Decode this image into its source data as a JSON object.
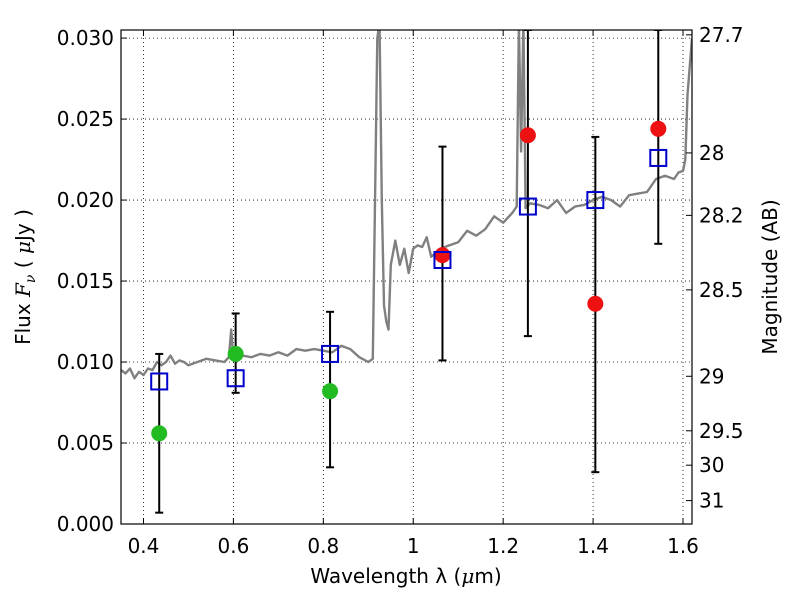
{
  "chart_data": {
    "type": "scatter",
    "xlabel": {
      "prefix": "Wavelength  λ (",
      "unit_mu": "μ",
      "unit_rest": "m)"
    },
    "ylabel": {
      "prefix": "Flux  ",
      "var_main": "F",
      "var_sub": "ν",
      "mid": "  ( ",
      "unit_mu": "μ",
      "unit_rest": "Jy )"
    },
    "y2label": "Magnitude (AB)",
    "xlim": [
      0.35,
      1.62
    ],
    "ylim": [
      0.0,
      0.0305
    ],
    "x_ticks": [
      {
        "value": 0.4,
        "label": "0.4"
      },
      {
        "value": 0.6,
        "label": "0.6"
      },
      {
        "value": 0.8,
        "label": "0.8"
      },
      {
        "value": 1.0,
        "label": "1"
      },
      {
        "value": 1.2,
        "label": "1.2"
      },
      {
        "value": 1.4,
        "label": "1.4"
      },
      {
        "value": 1.6,
        "label": "1.6"
      }
    ],
    "y_ticks": [
      {
        "value": 0.0,
        "label": "0.000"
      },
      {
        "value": 0.005,
        "label": "0.005"
      },
      {
        "value": 0.01,
        "label": "0.010"
      },
      {
        "value": 0.015,
        "label": "0.015"
      },
      {
        "value": 0.02,
        "label": "0.020"
      },
      {
        "value": 0.025,
        "label": "0.025"
      },
      {
        "value": 0.03,
        "label": "0.030"
      }
    ],
    "y2_ticks": [
      {
        "value": 27.7,
        "label": "27.7"
      },
      {
        "value": 28.0,
        "label": "28"
      },
      {
        "value": 28.2,
        "label": "28.2"
      },
      {
        "value": 28.5,
        "label": "28.5"
      },
      {
        "value": 29.0,
        "label": "29"
      },
      {
        "value": 29.5,
        "label": "29.5"
      },
      {
        "value": 30.0,
        "label": "30"
      },
      {
        "value": 31.0,
        "label": "31"
      }
    ],
    "grid": true,
    "colors": {
      "spectrum": "#808080",
      "optical_points": "#22bb22",
      "nir_points": "#ee1111",
      "model_squares": "#0000cc",
      "error_bars": "#000000"
    },
    "series": [
      {
        "kind": "line",
        "color": "#808080",
        "x": [
          0.35,
          0.36,
          0.37,
          0.38,
          0.39,
          0.4,
          0.41,
          0.42,
          0.43,
          0.44,
          0.45,
          0.46,
          0.47,
          0.48,
          0.49,
          0.5,
          0.52,
          0.54,
          0.56,
          0.58,
          0.59,
          0.595,
          0.6,
          0.62,
          0.64,
          0.66,
          0.68,
          0.7,
          0.72,
          0.74,
          0.76,
          0.78,
          0.8,
          0.82,
          0.84,
          0.86,
          0.88,
          0.9,
          0.91,
          0.92,
          0.925,
          0.93,
          0.935,
          0.94,
          0.945,
          0.95,
          0.96,
          0.97,
          0.98,
          0.99,
          1.0,
          1.01,
          1.02,
          1.03,
          1.04,
          1.06,
          1.08,
          1.1,
          1.12,
          1.14,
          1.16,
          1.18,
          1.2,
          1.22,
          1.23,
          1.235,
          1.24,
          1.245,
          1.25,
          1.26,
          1.28,
          1.3,
          1.32,
          1.34,
          1.36,
          1.38,
          1.4,
          1.42,
          1.44,
          1.46,
          1.48,
          1.5,
          1.52,
          1.54,
          1.56,
          1.58,
          1.59,
          1.6,
          1.605,
          1.61,
          1.62
        ],
        "y": [
          0.0095,
          0.0093,
          0.0096,
          0.009,
          0.0094,
          0.0092,
          0.0096,
          0.0095,
          0.01,
          0.0098,
          0.01,
          0.0104,
          0.0099,
          0.0101,
          0.01,
          0.0098,
          0.01,
          0.0102,
          0.0101,
          0.01,
          0.0103,
          0.012,
          0.0102,
          0.0104,
          0.0103,
          0.0105,
          0.0104,
          0.0106,
          0.0104,
          0.0108,
          0.0107,
          0.0108,
          0.0107,
          0.0106,
          0.011,
          0.0108,
          0.0103,
          0.01,
          0.0102,
          0.03,
          0.031,
          0.02,
          0.0135,
          0.0125,
          0.012,
          0.016,
          0.0175,
          0.016,
          0.017,
          0.0155,
          0.017,
          0.0172,
          0.0171,
          0.0177,
          0.0165,
          0.017,
          0.0172,
          0.0174,
          0.0181,
          0.0178,
          0.0182,
          0.019,
          0.0186,
          0.0192,
          0.0196,
          0.031,
          0.023,
          0.031,
          0.0195,
          0.0198,
          0.0197,
          0.0195,
          0.02,
          0.0192,
          0.0196,
          0.0197,
          0.02,
          0.0202,
          0.02,
          0.0196,
          0.0203,
          0.0204,
          0.0205,
          0.0213,
          0.0215,
          0.0213,
          0.0217,
          0.0218,
          0.0225,
          0.0265,
          0.03
        ]
      },
      {
        "kind": "scatter",
        "color": "#22bb22",
        "marker": "circle",
        "x": [
          0.435,
          0.605,
          0.815
        ],
        "y": [
          0.0056,
          0.0105,
          0.0082
        ],
        "err_low": [
          0.0007,
          0.0081,
          0.0035
        ],
        "err_high": [
          0.0105,
          0.013,
          0.0131
        ]
      },
      {
        "kind": "scatter",
        "color": "#ee1111",
        "marker": "circle",
        "x": [
          1.065,
          1.255,
          1.405,
          1.545
        ],
        "y": [
          0.0166,
          0.024,
          0.0136,
          0.0244
        ],
        "err_low": [
          0.0101,
          0.0116,
          0.0032,
          0.0173
        ],
        "err_high": [
          0.0233,
          0.0305,
          0.0239,
          0.0305
        ]
      },
      {
        "kind": "scatter",
        "color": "#0000cc",
        "marker": "open-square",
        "x": [
          0.435,
          0.605,
          0.815,
          1.065,
          1.255,
          1.405,
          1.545
        ],
        "y": [
          0.0088,
          0.009,
          0.0105,
          0.0163,
          0.0196,
          0.02,
          0.0226
        ]
      }
    ]
  }
}
